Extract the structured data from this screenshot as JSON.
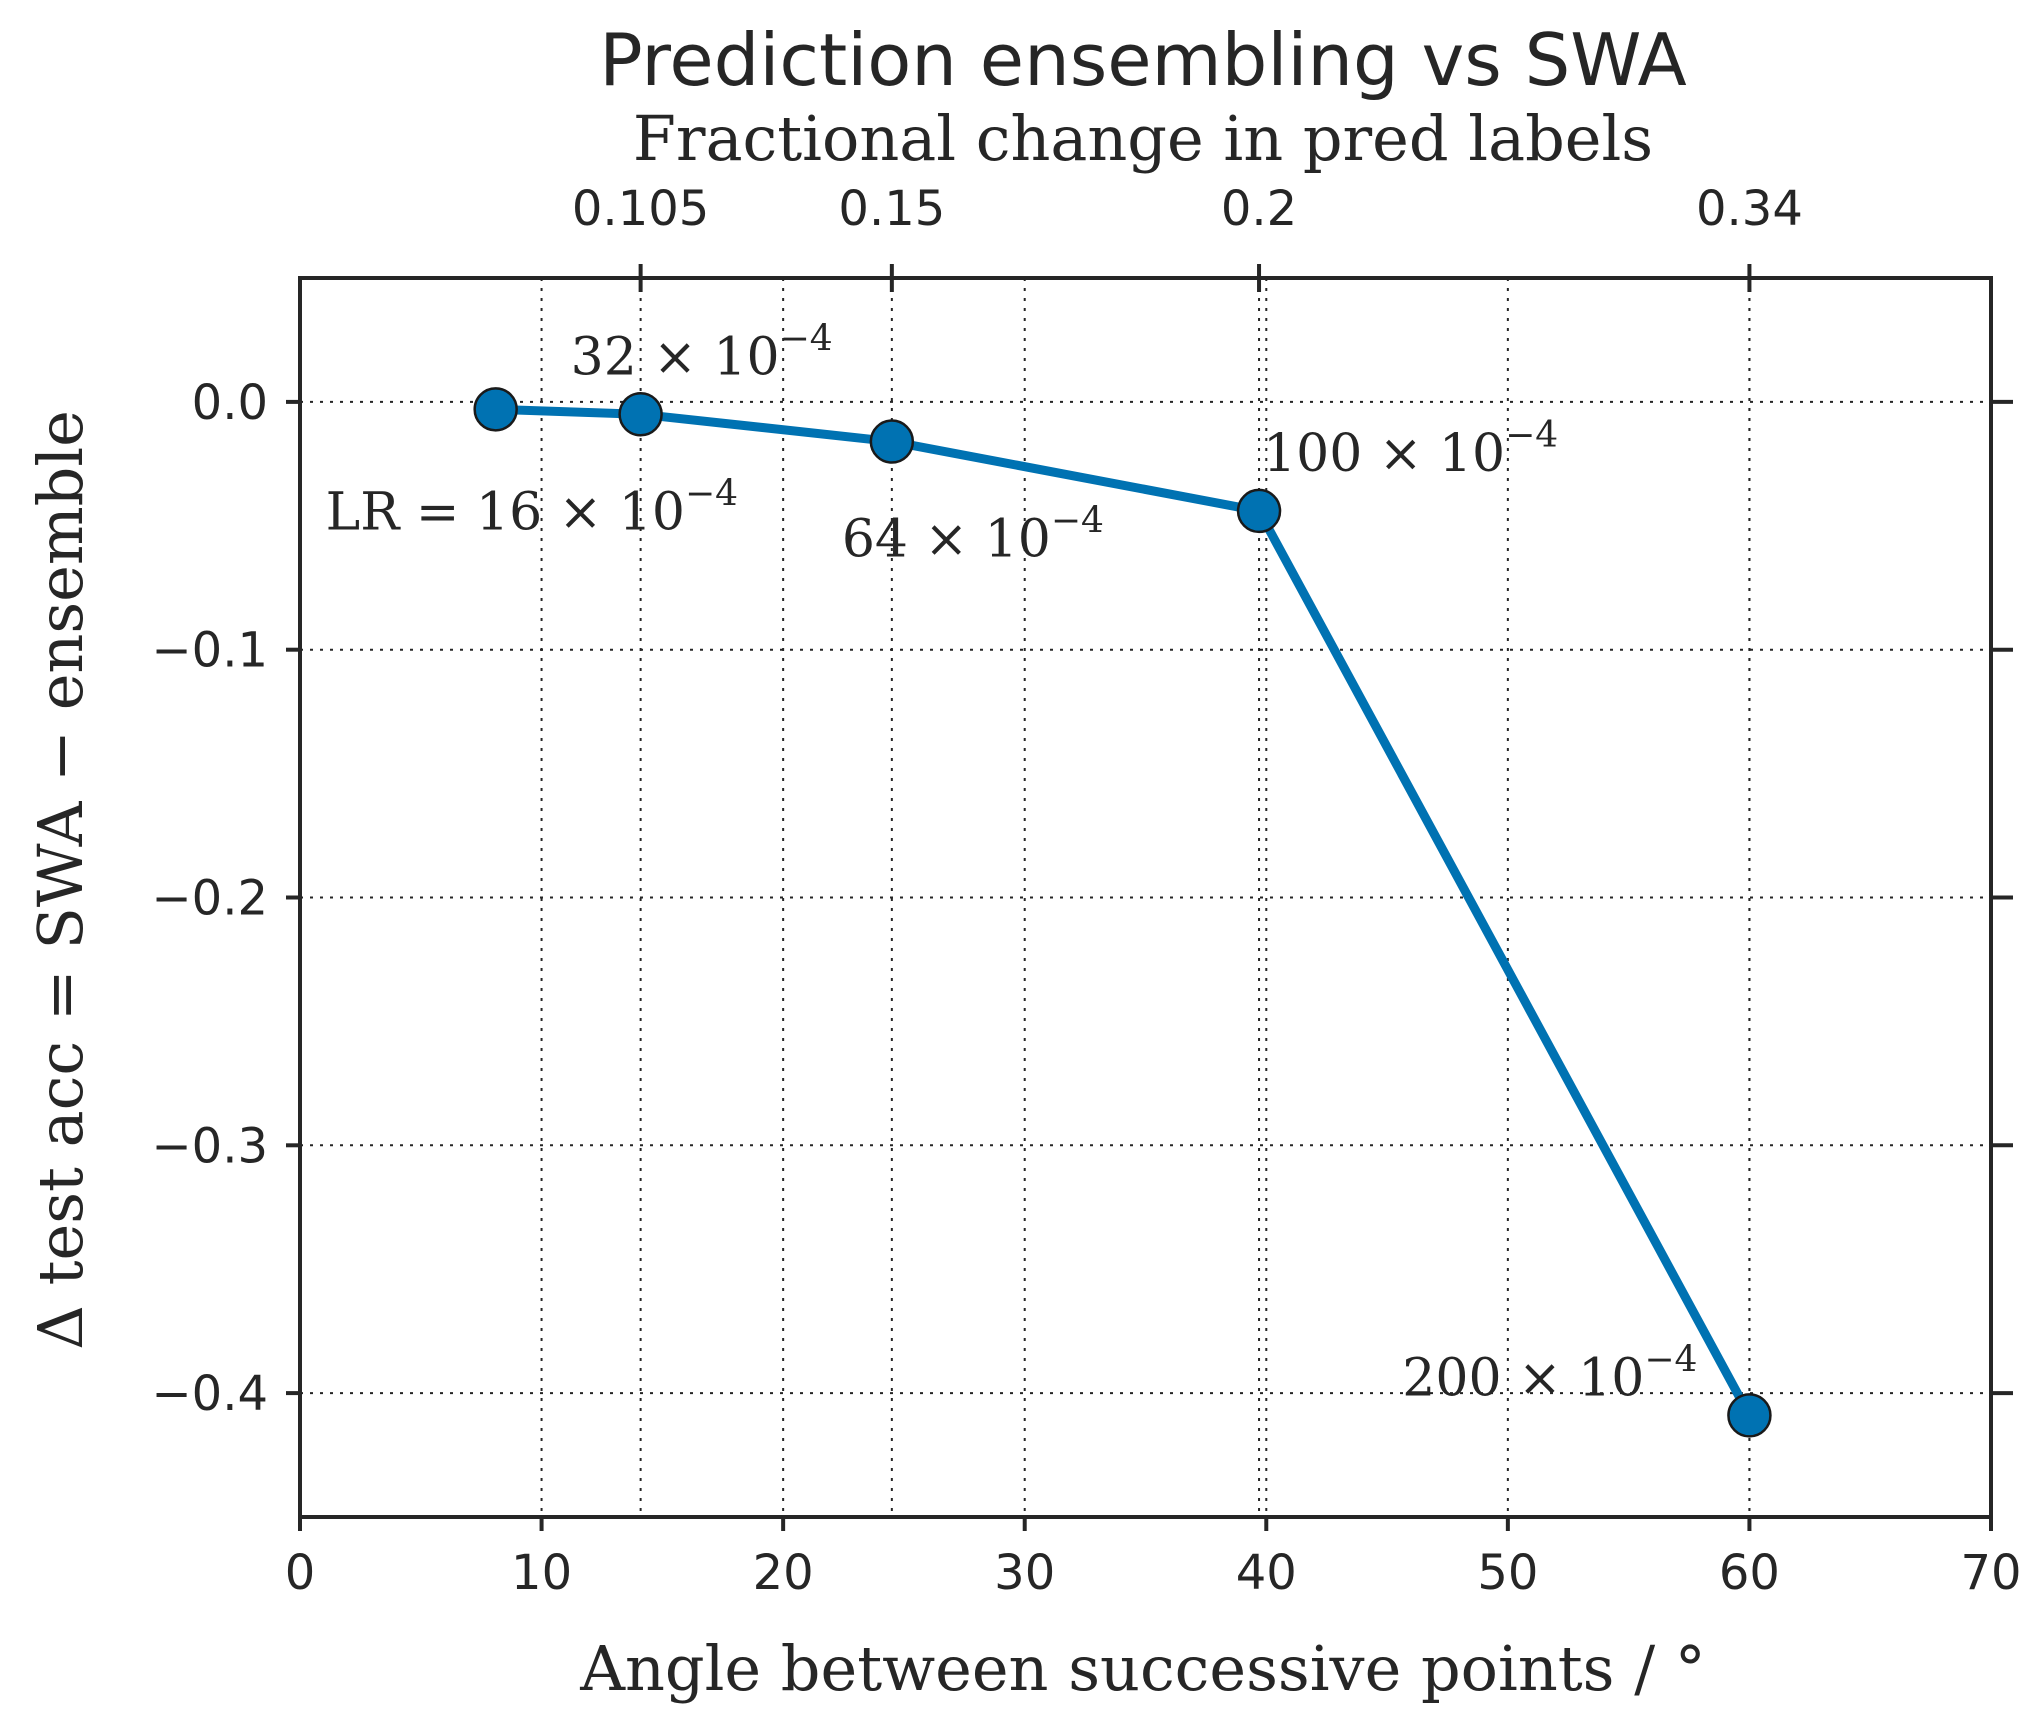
{
  "chart_data": {
    "type": "line",
    "title": "Prediction ensembling vs SWA",
    "top_axis_label": "Fractional change in pred labels",
    "xlabel": "Angle between successive points / °",
    "ylabel": "Δ test acc = SWA − ensemble",
    "xlim": [
      0,
      70
    ],
    "ylim": [
      -0.45,
      0.05
    ],
    "x_ticks": [
      0,
      10,
      20,
      30,
      40,
      50,
      60,
      70
    ],
    "x_tick_labels": [
      "0",
      "10",
      "20",
      "30",
      "40",
      "50",
      "60",
      "70"
    ],
    "y_ticks": [
      0.0,
      -0.1,
      -0.2,
      -0.3,
      -0.4
    ],
    "y_tick_labels": [
      "0.0",
      "−0.1",
      "−0.2",
      "−0.3",
      "−0.4"
    ],
    "top_ticks": [
      14.1,
      24.5,
      39.7,
      60.0
    ],
    "top_tick_labels": [
      "0.105",
      "0.15",
      "0.2",
      "0.34"
    ],
    "grid": true,
    "series": [
      {
        "name": "SWA − ensemble",
        "color": "#0072B2",
        "x": [
          8.1,
          14.1,
          24.5,
          39.7,
          60.0
        ],
        "y": [
          -0.003,
          -0.005,
          -0.016,
          -0.044,
          -0.409
        ],
        "point_labels": [
          "LR = 16 × 10",
          "32 × 10",
          "64 × 10",
          "100 × 10",
          "200 × 10"
        ],
        "label_exponent": "−4"
      }
    ]
  }
}
